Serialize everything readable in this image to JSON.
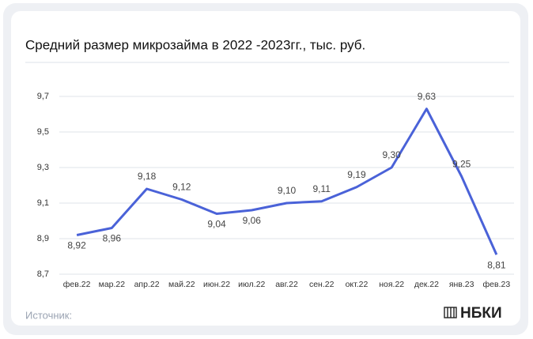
{
  "chart_data": {
    "type": "line",
    "title": "Средний размер микрозайма в 2022 -2023гг., тыс. руб.",
    "categories": [
      "фев.22",
      "мар.22",
      "апр.22",
      "май.22",
      "июн.22",
      "июл.22",
      "авг.22",
      "сен.22",
      "окт.22",
      "ноя.22",
      "дек.22",
      "янв.23",
      "фев.23"
    ],
    "series": [
      {
        "color": "#4a62d8",
        "values": [
          8.92,
          8.96,
          9.18,
          9.12,
          9.04,
          9.06,
          9.1,
          9.11,
          9.19,
          9.3,
          9.63,
          9.25,
          8.81
        ],
        "value_labels": [
          "8,92",
          "8,96",
          "9,18",
          "9,12",
          "9,04",
          "9,06",
          "9,10",
          "9,11",
          "9,19",
          "9,30",
          "9,63",
          "9,25",
          "8,81"
        ]
      }
    ],
    "ylim": [
      8.7,
      9.7
    ],
    "yticks": [
      {
        "value": 8.7,
        "label": "8,7"
      },
      {
        "value": 8.9,
        "label": "8,9"
      },
      {
        "value": 9.1,
        "label": "9,1"
      },
      {
        "value": 9.3,
        "label": "9,3"
      },
      {
        "value": 9.5,
        "label": "9,5"
      },
      {
        "value": 9.7,
        "label": "9,7"
      }
    ],
    "grid": true
  },
  "footer": {
    "source": "Источник:",
    "logo": "НБКИ"
  }
}
